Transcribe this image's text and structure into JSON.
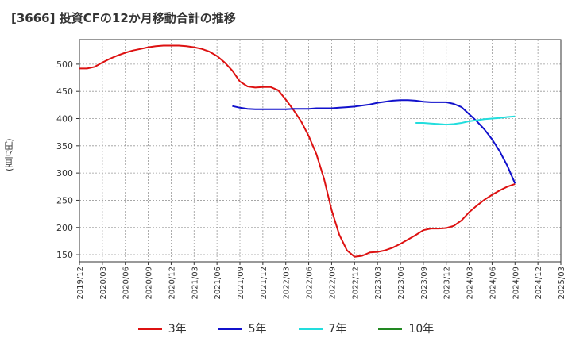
{
  "title": "[3666]  投資CFの12か月移動合計の推移",
  "chart_data": {
    "type": "line",
    "ylabel": "(百万円)",
    "ylim": [
      137,
      545
    ],
    "yticks": [
      150,
      200,
      250,
      300,
      350,
      400,
      450,
      500
    ],
    "xlim": [
      "2019-12",
      "2025-03"
    ],
    "xticks": [
      "2019/12",
      "2020/03",
      "2020/06",
      "2020/09",
      "2020/12",
      "2021/03",
      "2021/06",
      "2021/09",
      "2021/12",
      "2022/03",
      "2022/06",
      "2022/09",
      "2022/12",
      "2023/03",
      "2023/06",
      "2023/09",
      "2023/12",
      "2024/03",
      "2024/06",
      "2024/09",
      "2024/12",
      "2025/03"
    ],
    "grid": true,
    "legend_position": "bottom",
    "series": [
      {
        "name": "3年",
        "color": "#dd1111",
        "points": [
          [
            "2019-12",
            492
          ],
          [
            "2020-01",
            492
          ],
          [
            "2020-02",
            495
          ],
          [
            "2020-03",
            503
          ],
          [
            "2020-04",
            510
          ],
          [
            "2020-05",
            516
          ],
          [
            "2020-06",
            521
          ],
          [
            "2020-07",
            525
          ],
          [
            "2020-08",
            528
          ],
          [
            "2020-09",
            531
          ],
          [
            "2020-10",
            533
          ],
          [
            "2020-11",
            534
          ],
          [
            "2020-12",
            534
          ],
          [
            "2021-01",
            534
          ],
          [
            "2021-02",
            533
          ],
          [
            "2021-03",
            531
          ],
          [
            "2021-04",
            528
          ],
          [
            "2021-05",
            523
          ],
          [
            "2021-06",
            515
          ],
          [
            "2021-07",
            503
          ],
          [
            "2021-08",
            488
          ],
          [
            "2021-09",
            468
          ],
          [
            "2021-10",
            459
          ],
          [
            "2021-11",
            457
          ],
          [
            "2021-12",
            458
          ],
          [
            "2022-01",
            458
          ],
          [
            "2022-02",
            452
          ],
          [
            "2022-03",
            435
          ],
          [
            "2022-04",
            416
          ],
          [
            "2022-05",
            395
          ],
          [
            "2022-06",
            368
          ],
          [
            "2022-07",
            335
          ],
          [
            "2022-08",
            290
          ],
          [
            "2022-09",
            232
          ],
          [
            "2022-10",
            187
          ],
          [
            "2022-11",
            158
          ],
          [
            "2022-12",
            146
          ],
          [
            "2023-01",
            148
          ],
          [
            "2023-02",
            154
          ],
          [
            "2023-03",
            155
          ],
          [
            "2023-04",
            158
          ],
          [
            "2023-05",
            163
          ],
          [
            "2023-06",
            170
          ],
          [
            "2023-07",
            178
          ],
          [
            "2023-08",
            186
          ],
          [
            "2023-09",
            195
          ],
          [
            "2023-10",
            198
          ],
          [
            "2023-11",
            198
          ],
          [
            "2023-12",
            199
          ],
          [
            "2024-01",
            203
          ],
          [
            "2024-02",
            213
          ],
          [
            "2024-03",
            228
          ],
          [
            "2024-04",
            240
          ],
          [
            "2024-05",
            251
          ],
          [
            "2024-06",
            260
          ],
          [
            "2024-07",
            268
          ],
          [
            "2024-08",
            275
          ],
          [
            "2024-09",
            280
          ]
        ]
      },
      {
        "name": "5年",
        "color": "#1111cc",
        "points": [
          [
            "2021-08",
            423
          ],
          [
            "2021-09",
            420
          ],
          [
            "2021-10",
            418
          ],
          [
            "2021-11",
            417
          ],
          [
            "2021-12",
            417
          ],
          [
            "2022-01",
            417
          ],
          [
            "2022-02",
            417
          ],
          [
            "2022-03",
            417
          ],
          [
            "2022-04",
            418
          ],
          [
            "2022-05",
            418
          ],
          [
            "2022-06",
            418
          ],
          [
            "2022-07",
            419
          ],
          [
            "2022-08",
            419
          ],
          [
            "2022-09",
            419
          ],
          [
            "2022-10",
            420
          ],
          [
            "2022-11",
            421
          ],
          [
            "2022-12",
            422
          ],
          [
            "2023-01",
            424
          ],
          [
            "2023-02",
            426
          ],
          [
            "2023-03",
            429
          ],
          [
            "2023-04",
            431
          ],
          [
            "2023-05",
            433
          ],
          [
            "2023-06",
            434
          ],
          [
            "2023-07",
            434
          ],
          [
            "2023-08",
            433
          ],
          [
            "2023-09",
            431
          ],
          [
            "2023-10",
            430
          ],
          [
            "2023-11",
            430
          ],
          [
            "2023-12",
            430
          ],
          [
            "2024-01",
            427
          ],
          [
            "2024-02",
            421
          ],
          [
            "2024-03",
            408
          ],
          [
            "2024-04",
            395
          ],
          [
            "2024-05",
            380
          ],
          [
            "2024-06",
            362
          ],
          [
            "2024-07",
            340
          ],
          [
            "2024-08",
            313
          ],
          [
            "2024-09",
            281
          ]
        ]
      },
      {
        "name": "7年",
        "color": "#22dddd",
        "points": [
          [
            "2023-08",
            392
          ],
          [
            "2023-09",
            392
          ],
          [
            "2023-10",
            391
          ],
          [
            "2023-11",
            390
          ],
          [
            "2023-12",
            389
          ],
          [
            "2024-01",
            390
          ],
          [
            "2024-02",
            392
          ],
          [
            "2024-03",
            395
          ],
          [
            "2024-04",
            397
          ],
          [
            "2024-05",
            399
          ],
          [
            "2024-06",
            400
          ],
          [
            "2024-07",
            401
          ],
          [
            "2024-08",
            403
          ],
          [
            "2024-09",
            404
          ]
        ]
      },
      {
        "name": "10年",
        "color": "#228822",
        "points": []
      }
    ]
  }
}
